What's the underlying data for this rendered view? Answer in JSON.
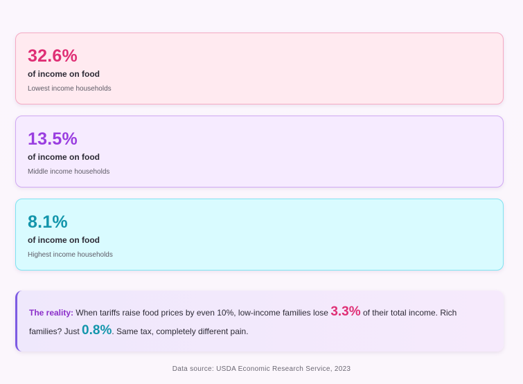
{
  "cards": [
    {
      "value": "32.6%",
      "label": "of income on food",
      "group": "Lowest income households",
      "color": "#df2f75"
    },
    {
      "value": "13.5%",
      "label": "of income on food",
      "group": "Middle income households",
      "color": "#9a3ee0"
    },
    {
      "value": "8.1%",
      "label": "of income on food",
      "group": "Highest income households",
      "color": "#1395ab"
    }
  ],
  "reality": {
    "lead": "The reality:",
    "text_1": " When tariffs raise food prices by even 10%, low-income families lose ",
    "highlight_1": "3.3%",
    "text_2": " of their total income. Rich families? Just ",
    "highlight_2": "0.8%",
    "text_3": ". Same tax, completely different pain."
  },
  "source": "Data source: USDA Economic Research Service, 2023"
}
